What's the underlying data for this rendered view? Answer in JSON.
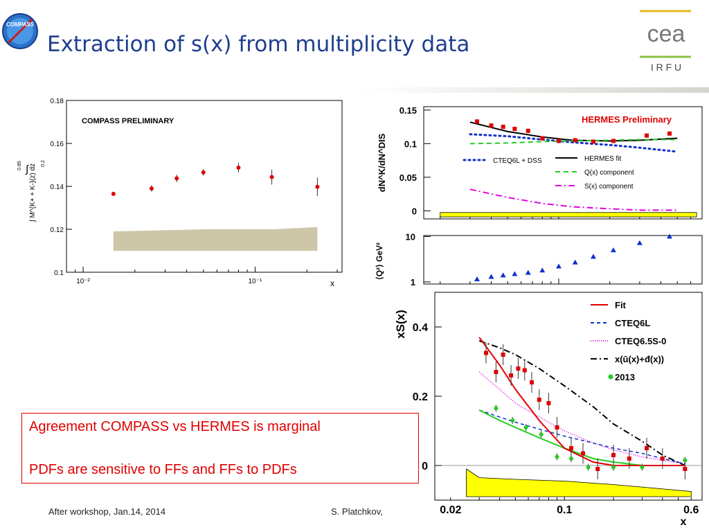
{
  "slide": {
    "title": "Extraction of s(x) from multiplicity data",
    "logos": {
      "compass": "COMPASS",
      "cea": "cea",
      "irfu": "I R F U"
    },
    "notes": [
      "Agreement COMPASS vs HERMES is  marginal",
      "PDFs are sensitive to FFs and FFs to PDFs"
    ],
    "footer_left": "After workshop, Jan.14, 2014",
    "footer_right": "S. Platchkov,"
  },
  "colors": {
    "title": "#1f3f8f",
    "red": "#e00000",
    "blue": "#1030c8",
    "green": "#22cc22",
    "magenta": "#dd00dd",
    "yellow": "#ffff00",
    "band": "#cdc6a8"
  },
  "chart_data": [
    {
      "type": "scatter",
      "panel": "compass",
      "title": "COMPASS PRELIMINARY",
      "xlabel": "x",
      "ylabel": "∫ M^{K+ + K-}(z) dz",
      "ylabel_limits": {
        "upper": "0.85",
        "lower": "0.2"
      },
      "xscale": "log",
      "xlim": [
        0.008,
        0.32
      ],
      "ylim": [
        0.1,
        0.18
      ],
      "xticklabels": [
        "10⁻²",
        "10⁻¹"
      ],
      "yticks": [
        0.1,
        0.12,
        0.14,
        0.16,
        0.18
      ],
      "yticklabels": [
        "0.1",
        "0.12",
        "0.14",
        "0.16",
        "0.18"
      ],
      "series": [
        {
          "points": [
            {
              "x": 0.015,
              "y": 0.1365,
              "err": 0.001
            },
            {
              "x": 0.025,
              "y": 0.139,
              "err": 0.0015
            },
            {
              "x": 0.035,
              "y": 0.1437,
              "err": 0.0017
            },
            {
              "x": 0.05,
              "y": 0.1465,
              "err": 0.0015
            },
            {
              "x": 0.08,
              "y": 0.1487,
              "err": 0.0022
            },
            {
              "x": 0.125,
              "y": 0.1443,
              "err": 0.0035
            },
            {
              "x": 0.23,
              "y": 0.1398,
              "err": 0.0043
            }
          ]
        }
      ],
      "systematic_band": {
        "x": [
          0.015,
          0.05,
          0.125,
          0.23
        ],
        "y_top": [
          0.119,
          0.12,
          0.12,
          0.121
        ],
        "y_bottom": [
          0.11,
          0.11,
          0.11,
          0.11
        ]
      }
    },
    {
      "type": "line",
      "panel": "hermes_multiplicity",
      "title": "HERMES Preliminary",
      "ylabel": "dN^K/dN^DIS",
      "xscale": "log",
      "xlim": [
        0.016,
        0.7
      ],
      "ylim": [
        -0.012,
        0.155
      ],
      "yticks": [
        0,
        0.05,
        0.1,
        0.15
      ],
      "yticklabels": [
        "0",
        "0.05",
        "0.1",
        "0.15"
      ],
      "legend": [
        {
          "label": "HERMES fit",
          "style": "solid",
          "color": "#000000"
        },
        {
          "label": "CTEQ6L + DSS",
          "style": "dotted",
          "color": "#1030c8"
        },
        {
          "label": "Q(x) component",
          "style": "dashed",
          "color": "#22cc22"
        },
        {
          "label": "S(x) component",
          "style": "dashdot",
          "color": "#dd00dd"
        }
      ],
      "data_points": {
        "x": [
          0.033,
          0.04,
          0.047,
          0.055,
          0.066,
          0.08,
          0.1,
          0.125,
          0.16,
          0.21,
          0.33,
          0.45
        ],
        "y": [
          0.133,
          0.127,
          0.125,
          0.122,
          0.119,
          0.108,
          0.104,
          0.105,
          0.103,
          0.104,
          0.112,
          0.115
        ]
      },
      "curves": {
        "x": [
          0.03,
          0.05,
          0.08,
          0.12,
          0.2,
          0.3,
          0.5
        ],
        "hermes_fit": [
          0.132,
          0.118,
          0.11,
          0.105,
          0.104,
          0.105,
          0.108
        ],
        "cteq6l_dss": [
          0.114,
          0.111,
          0.106,
          0.102,
          0.098,
          0.094,
          0.088
        ],
        "q_component": [
          0.1,
          0.101,
          0.103,
          0.104,
          0.105,
          0.106,
          0.106
        ],
        "s_component": [
          0.032,
          0.02,
          0.011,
          0.006,
          0.003,
          0.001,
          0.001
        ]
      }
    },
    {
      "type": "scatter",
      "panel": "hermes_q2",
      "ylabel": "⟨Q²⟩ GeV²",
      "xscale": "log",
      "yscale": "log",
      "xlim": [
        0.016,
        0.7
      ],
      "ylim": [
        0.9,
        10.5
      ],
      "yticklabels": [
        "1",
        "10"
      ],
      "points": {
        "x": [
          0.033,
          0.04,
          0.047,
          0.055,
          0.066,
          0.08,
          0.1,
          0.125,
          0.16,
          0.21,
          0.3,
          0.45
        ],
        "y": [
          1.15,
          1.3,
          1.4,
          1.5,
          1.6,
          1.8,
          2.2,
          2.7,
          3.6,
          5.0,
          7.2,
          10.0
        ]
      }
    },
    {
      "type": "line",
      "panel": "xs",
      "ylabel": "xS(x)",
      "xlabel": "x",
      "xscale": "log",
      "xlim": [
        0.016,
        0.7
      ],
      "ylim": [
        -0.1,
        0.5
      ],
      "xticklabels": [
        "0.02",
        "0.1",
        "0.6"
      ],
      "yticklabels": [
        "0",
        "0.2",
        "0.4"
      ],
      "legend": [
        {
          "label": "Fit",
          "style": "solid",
          "color": "#e00000"
        },
        {
          "label": "CTEQ6L",
          "style": "dashed",
          "color": "#1030c8"
        },
        {
          "label": "CTEQ6.5S-0",
          "style": "dotted",
          "color": "#dd00dd"
        },
        {
          "label": "x(ū(x)+đ(x))",
          "style": "dashdot",
          "color": "#000000"
        },
        {
          "label": "2013",
          "style": "marker",
          "color": "#22cc22"
        }
      ],
      "red_points": {
        "x": [
          0.033,
          0.038,
          0.042,
          0.047,
          0.052,
          0.057,
          0.063,
          0.07,
          0.08,
          0.09,
          0.11,
          0.13,
          0.16,
          0.2,
          0.25,
          0.32,
          0.4,
          0.55
        ],
        "y": [
          0.325,
          0.27,
          0.32,
          0.26,
          0.28,
          0.275,
          0.24,
          0.19,
          0.18,
          0.11,
          0.05,
          0.035,
          -0.01,
          0.03,
          0.02,
          0.05,
          0.02,
          -0.01
        ]
      },
      "green_points": {
        "x": [
          0.038,
          0.048,
          0.058,
          0.072,
          0.09,
          0.11,
          0.14,
          0.2,
          0.3,
          0.55
        ],
        "y": [
          0.165,
          0.13,
          0.11,
          0.09,
          0.025,
          0.02,
          -0.005,
          -0.005,
          -0.005,
          0.015
        ]
      },
      "curves": {
        "x": [
          0.03,
          0.04,
          0.05,
          0.07,
          0.1,
          0.15,
          0.2,
          0.3,
          0.4,
          0.55
        ],
        "fit": [
          0.37,
          0.29,
          0.22,
          0.13,
          0.05,
          0.01,
          0.0,
          0.0,
          0.0,
          0.0
        ],
        "fit_green": [
          0.16,
          0.13,
          0.11,
          0.08,
          0.05,
          0.02,
          0.01,
          0.0,
          0.0,
          0.0
        ],
        "cteq6l": [
          0.16,
          0.14,
          0.125,
          0.105,
          0.085,
          0.065,
          0.05,
          0.035,
          0.02,
          0.005
        ],
        "cteq65s0": [
          0.27,
          0.22,
          0.18,
          0.14,
          0.1,
          0.065,
          0.045,
          0.025,
          0.015,
          0.005
        ],
        "ubar_dbar": [
          0.36,
          0.34,
          0.32,
          0.28,
          0.23,
          0.17,
          0.12,
          0.07,
          0.03,
          0.0
        ]
      },
      "band_bottom": {
        "x": [
          0.025,
          0.03,
          0.05,
          0.1,
          0.2,
          0.6
        ],
        "y": [
          -0.01,
          -0.035,
          -0.04,
          -0.045,
          -0.055,
          -0.075
        ]
      }
    }
  ]
}
